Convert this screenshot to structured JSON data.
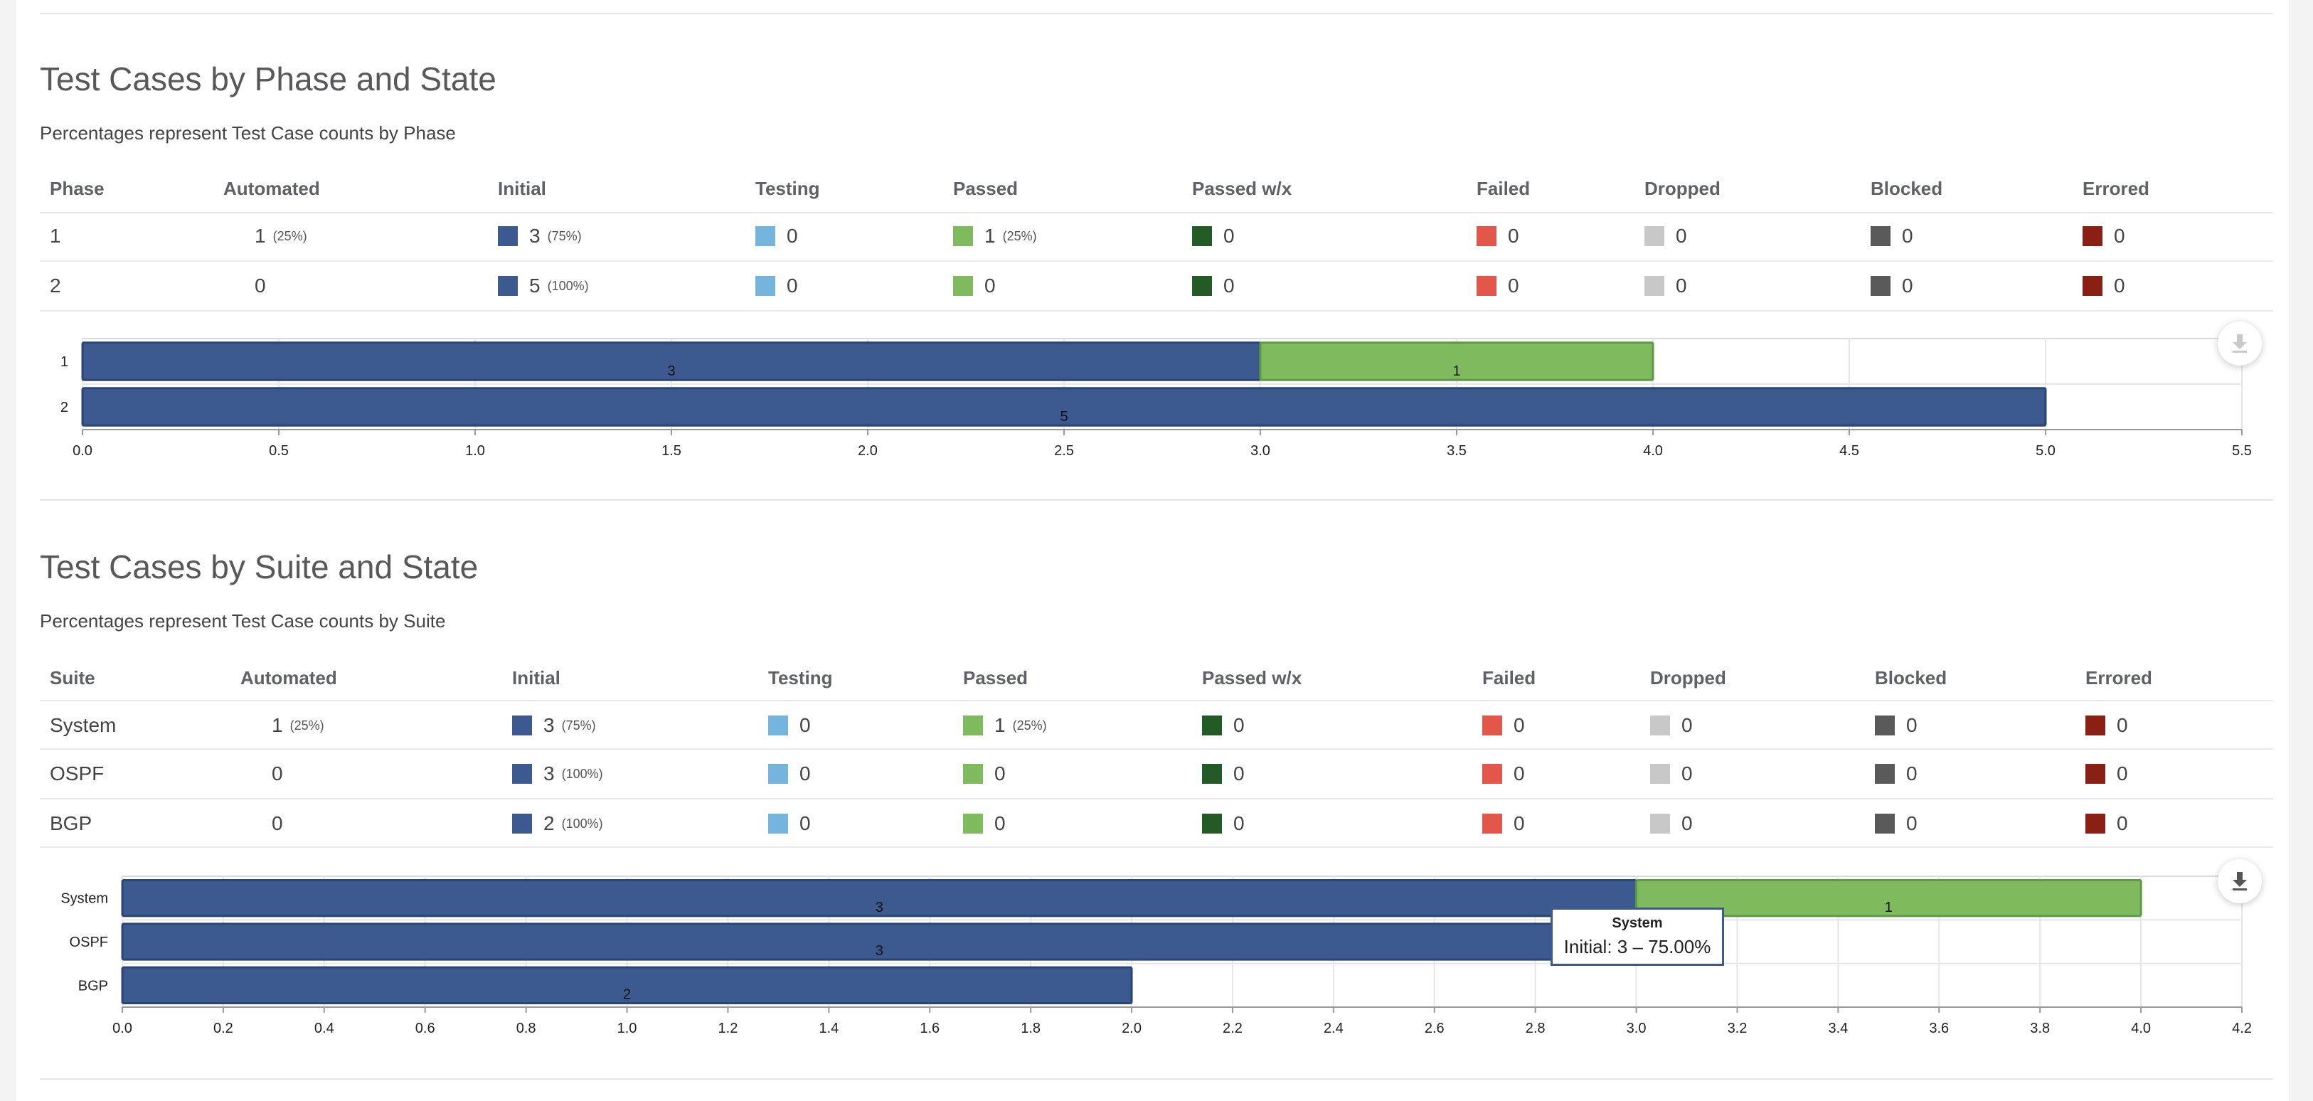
{
  "colors": {
    "initial": "#3c5a8f",
    "testing": "#74b4dd",
    "passed": "#7fbb5e",
    "passed_wx": "#235a26",
    "failed": "#e3564a",
    "dropped": "#c8c8c8",
    "blocked": "#5a5a5a",
    "errored": "#8a1f14",
    "passed_border": "#5e9a43"
  },
  "phase_section": {
    "title": "Test Cases by Phase and State",
    "subtitle": "Percentages represent Test Case counts by Phase",
    "headers": [
      "Phase",
      "Automated",
      "Initial",
      "Testing",
      "Passed",
      "Passed w/x",
      "Failed",
      "Dropped",
      "Blocked",
      "Errored"
    ],
    "rows": [
      {
        "label": "1",
        "automated": "1",
        "automated_pct": "(25%)",
        "initial": "3",
        "initial_pct": "(75%)",
        "testing": "0",
        "passed": "1",
        "passed_pct": "(25%)",
        "passed_wx": "0",
        "failed": "0",
        "dropped": "0",
        "blocked": "0",
        "errored": "0"
      },
      {
        "label": "2",
        "automated": "0",
        "automated_pct": "",
        "initial": "5",
        "initial_pct": "(100%)",
        "testing": "0",
        "passed": "0",
        "passed_pct": "",
        "passed_wx": "0",
        "failed": "0",
        "dropped": "0",
        "blocked": "0",
        "errored": "0"
      }
    ],
    "download_icon": "download-icon"
  },
  "suite_section": {
    "title": "Test Cases by Suite and State",
    "subtitle": "Percentages represent Test Case counts by Suite",
    "headers": [
      "Suite",
      "Automated",
      "Initial",
      "Testing",
      "Passed",
      "Passed w/x",
      "Failed",
      "Dropped",
      "Blocked",
      "Errored"
    ],
    "rows": [
      {
        "label": "System",
        "automated": "1",
        "automated_pct": "(25%)",
        "initial": "3",
        "initial_pct": "(75%)",
        "testing": "0",
        "passed": "1",
        "passed_pct": "(25%)",
        "passed_wx": "0",
        "failed": "0",
        "dropped": "0",
        "blocked": "0",
        "errored": "0"
      },
      {
        "label": "OSPF",
        "automated": "0",
        "automated_pct": "",
        "initial": "3",
        "initial_pct": "(100%)",
        "testing": "0",
        "passed": "0",
        "passed_pct": "",
        "passed_wx": "0",
        "failed": "0",
        "dropped": "0",
        "blocked": "0",
        "errored": "0"
      },
      {
        "label": "BGP",
        "automated": "0",
        "automated_pct": "",
        "initial": "2",
        "initial_pct": "(100%)",
        "testing": "0",
        "passed": "0",
        "passed_pct": "",
        "passed_wx": "0",
        "failed": "0",
        "dropped": "0",
        "blocked": "0",
        "errored": "0"
      }
    ],
    "tooltip": {
      "title": "System",
      "body": "Initial: 3 – 75.00%"
    },
    "download_icon": "download-icon"
  },
  "chart_data": [
    {
      "type": "bar",
      "orientation": "horizontal",
      "stacked": true,
      "categories": [
        "1",
        "2"
      ],
      "series": [
        {
          "name": "Initial",
          "color_key": "initial",
          "values": [
            3,
            5
          ]
        },
        {
          "name": "Passed",
          "color_key": "passed",
          "values": [
            1,
            0
          ]
        }
      ],
      "xlim": [
        0,
        5.5
      ],
      "xticks": [
        "0.0",
        "0.5",
        "1.0",
        "1.5",
        "2.0",
        "2.5",
        "3.0",
        "3.5",
        "4.0",
        "4.5",
        "5.0",
        "5.5"
      ],
      "grid": true
    },
    {
      "type": "bar",
      "orientation": "horizontal",
      "stacked": true,
      "categories": [
        "System",
        "OSPF",
        "BGP"
      ],
      "series": [
        {
          "name": "Initial",
          "color_key": "initial",
          "values": [
            3,
            3,
            2
          ]
        },
        {
          "name": "Passed",
          "color_key": "passed",
          "values": [
            1,
            0,
            0
          ]
        }
      ],
      "xlim": [
        0,
        4.2
      ],
      "xticks": [
        "0.0",
        "0.2",
        "0.4",
        "0.6",
        "0.8",
        "1.0",
        "1.2",
        "1.4",
        "1.6",
        "1.8",
        "2.0",
        "2.2",
        "2.4",
        "2.6",
        "2.8",
        "3.0",
        "3.2",
        "3.4",
        "3.6",
        "3.8",
        "4.0",
        "4.2"
      ],
      "grid": true
    }
  ]
}
